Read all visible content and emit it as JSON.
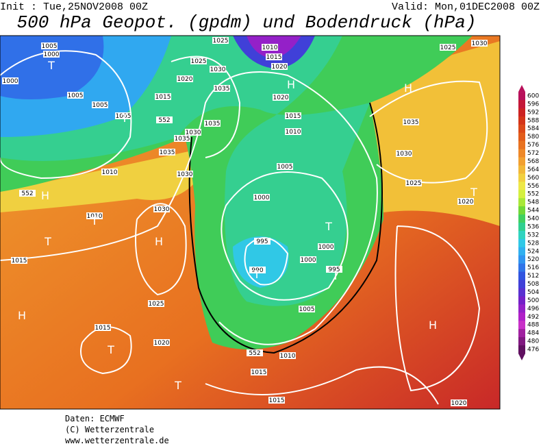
{
  "header": {
    "init": "Init : Tue,25NOV2008 00Z",
    "valid": "Valid: Mon,01DEC2008 00Z",
    "title": "500 hPa Geopot. (gpdm) und Bodendruck (hPa)"
  },
  "legend": {
    "labels": [
      600,
      596,
      592,
      588,
      584,
      580,
      576,
      572,
      568,
      564,
      560,
      556,
      552,
      548,
      544,
      540,
      536,
      532,
      528,
      524,
      520,
      516,
      512,
      508,
      504,
      500,
      496,
      492,
      488,
      484,
      480,
      476
    ],
    "colors": [
      "#b8105a",
      "#c41838",
      "#cc2222",
      "#d43418",
      "#dc4818",
      "#e25c1a",
      "#e87220",
      "#ee8828",
      "#f2a030",
      "#f2b838",
      "#f2d040",
      "#eee848",
      "#d4f040",
      "#a8e838",
      "#70d838",
      "#40d060",
      "#30d090",
      "#30d4c0",
      "#30c8e6",
      "#30b0f0",
      "#3094f0",
      "#3074e8",
      "#3054e0",
      "#4040d8",
      "#5830d0",
      "#7420c8",
      "#9420c8",
      "#b020c8",
      "#c830c8",
      "#a020a0",
      "#801880",
      "#601060"
    ]
  },
  "map": {
    "labels": [
      "1005",
      "1000",
      "1000",
      "1005",
      "1005",
      "1005",
      "1010",
      "1010",
      "1015",
      "1015",
      "1020",
      "1025",
      "1025",
      "1030",
      "1035",
      "1035",
      "1030",
      "1035",
      "1035",
      "1030",
      "1030",
      "1025",
      "1020",
      "1015",
      "1010",
      "1015",
      "1020",
      "1020",
      "1015",
      "1010",
      "1005",
      "1000",
      "995",
      "990",
      "1000",
      "1000",
      "995",
      "1005",
      "1010",
      "1015",
      "1015",
      "1020",
      "1025",
      "1030",
      "1035",
      "1030",
      "1025",
      "1020",
      "552",
      "552",
      "552"
    ],
    "centers": [
      "T",
      "T",
      "H",
      "T",
      "T",
      "H",
      "H",
      "T",
      "T",
      "H",
      "H",
      "T",
      "T",
      "T",
      "H",
      "T"
    ]
  },
  "footer": [
    "Daten: ECMWF",
    "(C) Wetterzentrale",
    "www.wetterzentrale.de"
  ]
}
